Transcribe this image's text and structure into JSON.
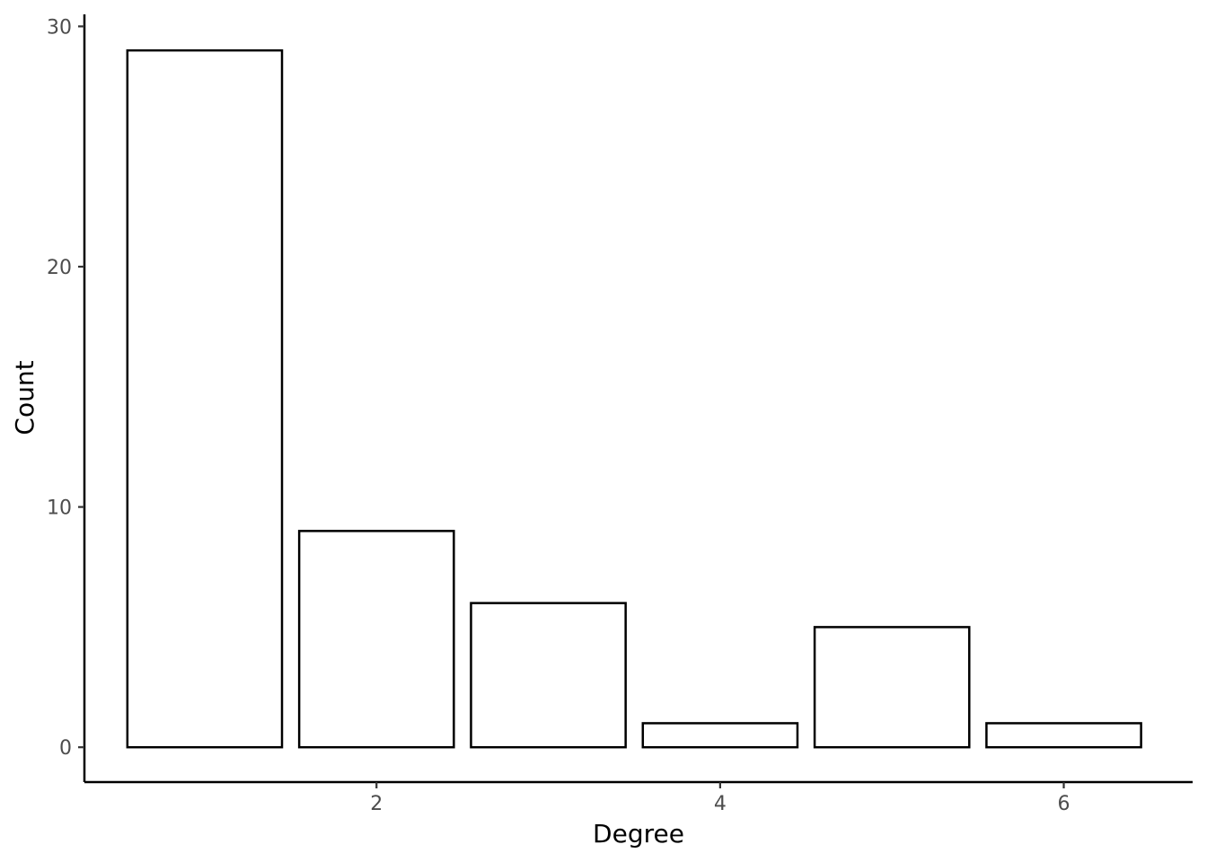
{
  "chart_data": {
    "type": "bar",
    "x": [
      1,
      2,
      3,
      4,
      5,
      6
    ],
    "values": [
      29,
      9,
      6,
      1,
      5,
      1
    ],
    "xlabel": "Degree",
    "ylabel": "Count",
    "xlim": [
      0.3,
      6.75
    ],
    "ylim": [
      -1.45,
      30.5
    ],
    "x_ticks": [
      2,
      4,
      6
    ],
    "y_ticks": [
      0,
      10,
      20,
      30
    ],
    "x_tick_labels": [
      "2",
      "4",
      "6"
    ],
    "y_tick_labels": [
      "0",
      "10",
      "20",
      "30"
    ],
    "grid": false,
    "bar_fill": "#ffffff",
    "bar_stroke": "#000000"
  }
}
